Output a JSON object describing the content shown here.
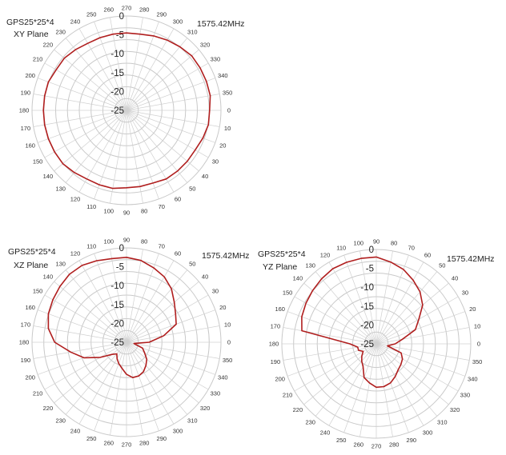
{
  "chart_data": [
    {
      "type": "polar-line",
      "title": "GPS25*25*4",
      "subtitle": "XY Plane",
      "annotation": "1575.42MHz",
      "r_ticks": [
        0,
        -5,
        -10,
        -15,
        -20,
        -25
      ],
      "r_range": [
        -25,
        0
      ],
      "angle_ticks": [
        0,
        10,
        20,
        30,
        40,
        50,
        60,
        70,
        80,
        90,
        100,
        110,
        120,
        130,
        140,
        150,
        160,
        170,
        180,
        190,
        200,
        210,
        220,
        230,
        240,
        250,
        260,
        270,
        280,
        290,
        300,
        310,
        320,
        330,
        340,
        350
      ],
      "angle_at_right": 0,
      "angle_at_top": 270,
      "series": [
        {
          "color": "#b01e1e",
          "theta": [
            0,
            10,
            20,
            30,
            40,
            50,
            60,
            70,
            80,
            90,
            100,
            110,
            120,
            130,
            140,
            150,
            160,
            170,
            180,
            190,
            200,
            210,
            220,
            230,
            240,
            250,
            260,
            270,
            280,
            290,
            300,
            310,
            320,
            330,
            340,
            350
          ],
          "r": [
            -3.0,
            -3.0,
            -3.5,
            -4.0,
            -4.0,
            -4.0,
            -4.0,
            -4.5,
            -4.5,
            -4.5,
            -4.0,
            -4.0,
            -4.0,
            -3.5,
            -3.0,
            -3.0,
            -3.0,
            -3.0,
            -3.0,
            -3.0,
            -3.0,
            -3.5,
            -3.5,
            -4.0,
            -4.5,
            -4.5,
            -4.5,
            -4.5,
            -4.5,
            -4.0,
            -3.5,
            -3.0,
            -2.5,
            -2.5,
            -2.5,
            -2.5
          ]
        }
      ]
    },
    {
      "type": "polar-line",
      "title": "GPS25*25*4",
      "subtitle": "XZ Plane",
      "annotation": "1575.42MHz",
      "r_ticks": [
        0,
        -5,
        -10,
        -15,
        -20,
        -25
      ],
      "r_range": [
        -25,
        0
      ],
      "angle_ticks": [
        90,
        80,
        70,
        60,
        50,
        40,
        30,
        20,
        10,
        0,
        350,
        340,
        330,
        320,
        310,
        300,
        290,
        280,
        270,
        260,
        250,
        240,
        230,
        220,
        210,
        200,
        190,
        180,
        170,
        160,
        150,
        140,
        130,
        120,
        110,
        100
      ],
      "angle_at_right": 0,
      "angle_at_top": 90,
      "series": [
        {
          "color": "#b01e1e",
          "theta": [
            0,
            10,
            20,
            30,
            40,
            50,
            60,
            70,
            80,
            90,
            100,
            110,
            120,
            130,
            140,
            150,
            160,
            170,
            180,
            190,
            200,
            210,
            220,
            230,
            240,
            250,
            260,
            270,
            280,
            290,
            300,
            310,
            320,
            330,
            340,
            350
          ],
          "r": [
            -19,
            -15,
            -11,
            -10,
            -8.5,
            -6.5,
            -5,
            -4,
            -3,
            -2.5,
            -2.5,
            -2,
            -1.5,
            -1.5,
            -2,
            -2.5,
            -3,
            -4,
            -6,
            -10,
            -13,
            -17,
            -20,
            -21,
            -20,
            -19,
            -18,
            -16.5,
            -15.5,
            -15.5,
            -16,
            -17,
            -18,
            -19.5,
            -20.5,
            -23
          ]
        }
      ]
    },
    {
      "type": "polar-line",
      "title": "GPS25*25*4",
      "subtitle": "YZ Plane",
      "annotation": "1575.42MHz",
      "r_ticks": [
        0,
        -5,
        -10,
        -15,
        -20,
        -25
      ],
      "r_range": [
        -25,
        0
      ],
      "angle_ticks": [
        90,
        80,
        70,
        60,
        50,
        40,
        30,
        20,
        10,
        0,
        350,
        340,
        330,
        320,
        310,
        300,
        290,
        280,
        270,
        260,
        250,
        240,
        230,
        220,
        210,
        200,
        190,
        180,
        170,
        160,
        150,
        140,
        130,
        120,
        110,
        100
      ],
      "angle_at_right": 0,
      "angle_at_top": 90,
      "series": [
        {
          "color": "#b01e1e",
          "theta": [
            0,
            10,
            20,
            30,
            40,
            50,
            60,
            70,
            80,
            90,
            100,
            110,
            120,
            130,
            140,
            150,
            160,
            170,
            180,
            190,
            200,
            210,
            220,
            230,
            240,
            250,
            260,
            270,
            280,
            290,
            300,
            310,
            320,
            330,
            340,
            350
          ],
          "r": [
            -20,
            -18,
            -14,
            -12,
            -9,
            -7,
            -5.5,
            -4,
            -3,
            -2,
            -2,
            -2,
            -2,
            -2.5,
            -3,
            -3.5,
            -4,
            -5,
            -18,
            -20,
            -20,
            -21,
            -20,
            -19,
            -18,
            -15.5,
            -14.5,
            -13.5,
            -13.5,
            -14,
            -15,
            -16,
            -16.5,
            -17,
            -18,
            -22
          ]
        }
      ]
    }
  ]
}
